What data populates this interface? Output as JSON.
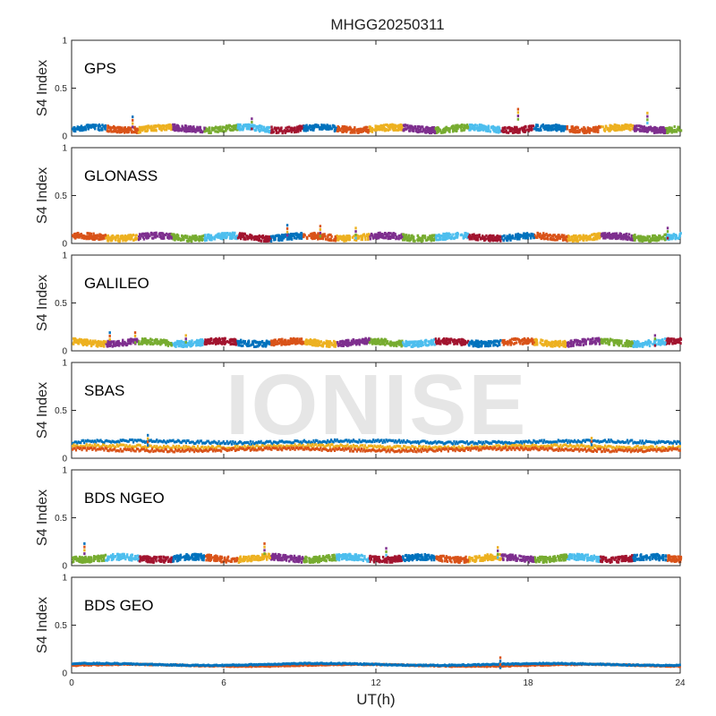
{
  "title": "MHGG20250311",
  "xlabel": "UT(h)",
  "watermark": "IONISE",
  "chart_data": [
    {
      "type": "scatter",
      "panel": "GPS",
      "ylabel": "S4 Index",
      "xlim": [
        0,
        24
      ],
      "ylim": [
        0,
        1
      ],
      "yticks": [
        0,
        0.5,
        1
      ],
      "baseline": 0.07,
      "spread": 0.06,
      "spikes": [
        [
          2.4,
          0.2
        ],
        [
          17.6,
          0.28
        ],
        [
          22.7,
          0.24
        ],
        [
          7.1,
          0.18
        ]
      ],
      "series_colors": [
        "#0072bd",
        "#d95319",
        "#edb120",
        "#7e2f8e",
        "#77ac30",
        "#4dbeee",
        "#a2142f"
      ]
    },
    {
      "type": "scatter",
      "panel": "GLONASS",
      "ylabel": "S4 Index",
      "xlim": [
        0,
        24
      ],
      "ylim": [
        0,
        1
      ],
      "yticks": [
        0,
        0.5,
        1
      ],
      "baseline": 0.06,
      "spread": 0.06,
      "spikes": [
        [
          8.5,
          0.19
        ],
        [
          9.8,
          0.18
        ],
        [
          11.2,
          0.16
        ],
        [
          23.5,
          0.16
        ]
      ],
      "series_colors": [
        "#0072bd",
        "#d95319",
        "#edb120",
        "#7e2f8e",
        "#77ac30",
        "#4dbeee",
        "#a2142f"
      ]
    },
    {
      "type": "scatter",
      "panel": "GALILEO",
      "ylabel": "S4 Index",
      "xlim": [
        0,
        24
      ],
      "ylim": [
        0,
        1
      ],
      "yticks": [
        0,
        0.5,
        1
      ],
      "baseline": 0.08,
      "spread": 0.06,
      "spikes": [
        [
          1.5,
          0.19
        ],
        [
          2.5,
          0.19
        ],
        [
          4.5,
          0.16
        ],
        [
          23.0,
          0.16
        ]
      ],
      "series_colors": [
        "#0072bd",
        "#d95319",
        "#edb120",
        "#7e2f8e",
        "#77ac30",
        "#4dbeee",
        "#a2142f"
      ]
    },
    {
      "type": "scatter",
      "panel": "SBAS",
      "ylabel": "S4 Index",
      "xlim": [
        0,
        24
      ],
      "ylim": [
        0,
        1
      ],
      "yticks": [
        0,
        0.5,
        1
      ],
      "baseline": 0.12,
      "spread": 0.03,
      "spikes": [
        [
          3.0,
          0.24
        ],
        [
          20.5,
          0.21
        ]
      ],
      "series_colors": [
        "#0072bd",
        "#edb120",
        "#d95319"
      ],
      "series_levels": [
        0.17,
        0.12,
        0.09
      ]
    },
    {
      "type": "scatter",
      "panel": "BDS NGEO",
      "ylabel": "S4 Index",
      "xlim": [
        0,
        24
      ],
      "ylim": [
        0,
        1
      ],
      "yticks": [
        0,
        0.5,
        1
      ],
      "baseline": 0.07,
      "spread": 0.06,
      "spikes": [
        [
          0.5,
          0.23
        ],
        [
          7.6,
          0.23
        ],
        [
          16.8,
          0.19
        ],
        [
          12.4,
          0.18
        ]
      ],
      "series_colors": [
        "#0072bd",
        "#d95319",
        "#edb120",
        "#7e2f8e",
        "#77ac30",
        "#4dbeee",
        "#a2142f"
      ]
    },
    {
      "type": "scatter",
      "panel": "BDS GEO",
      "ylabel": "S4 Index",
      "xlim": [
        0,
        24
      ],
      "ylim": [
        0,
        1
      ],
      "yticks": [
        0,
        0.5,
        1
      ],
      "baseline": 0.08,
      "spread": 0.01,
      "spikes": [
        [
          16.9,
          0.16
        ]
      ],
      "series_colors": [
        "#d95319",
        "#0072bd"
      ],
      "series_levels": [
        0.08,
        0.09
      ]
    }
  ],
  "xticks": [
    0,
    6,
    12,
    18,
    24
  ]
}
